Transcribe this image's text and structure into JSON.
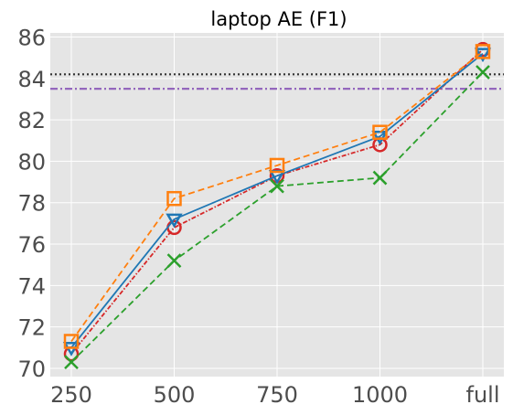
{
  "chart_data": {
    "type": "line",
    "title": "laptop AE (F1)",
    "xlabel": "",
    "ylabel": "",
    "categories": [
      "250",
      "500",
      "750",
      "1000",
      "full"
    ],
    "ylim": [
      69.6,
      86.2
    ],
    "yticks": [
      70,
      72,
      74,
      76,
      78,
      80,
      82,
      84,
      86
    ],
    "grid": true,
    "background": "#e5e5e5",
    "series": [
      {
        "color": "#d62728",
        "linestyle": "dashdot-dense",
        "marker": "circle",
        "values": [
          70.7,
          76.8,
          79.3,
          80.8,
          85.4
        ]
      },
      {
        "color": "#1f77b4",
        "linestyle": "solid",
        "marker": "triangle-down",
        "values": [
          71.0,
          77.2,
          79.3,
          81.2,
          85.2
        ]
      },
      {
        "color": "#ff7f0e",
        "linestyle": "dashed",
        "marker": "square",
        "values": [
          71.3,
          78.2,
          79.8,
          81.4,
          85.3
        ]
      },
      {
        "color": "#2ca02c",
        "linestyle": "dashed",
        "marker": "x",
        "values": [
          70.3,
          75.2,
          78.8,
          79.2,
          84.3
        ]
      }
    ],
    "hlines": [
      {
        "value": 84.2,
        "color": "#333333",
        "linestyle": "dotted"
      },
      {
        "value": 83.5,
        "color": "#9467bd",
        "linestyle": "dashdot"
      }
    ]
  }
}
